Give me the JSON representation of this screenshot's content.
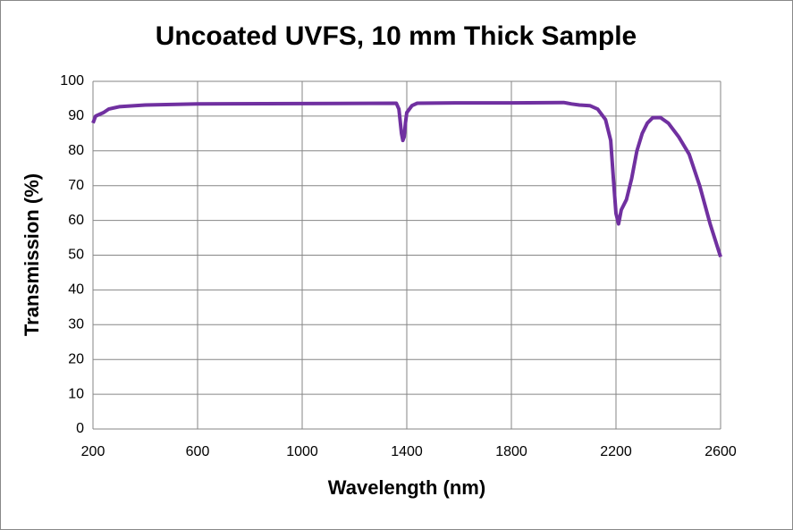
{
  "chart_data": {
    "type": "line",
    "title": "Uncoated UVFS, 10 mm Thick Sample",
    "x_label": "Wavelength (nm)",
    "y_label": "Transmission (%)",
    "x": [
      200,
      210,
      240,
      260,
      300,
      400,
      600,
      1000,
      1360,
      1370,
      1380,
      1385,
      1390,
      1395,
      1400,
      1420,
      1440,
      1600,
      1800,
      2000,
      2030,
      2060,
      2100,
      2130,
      2160,
      2180,
      2190,
      2200,
      2210,
      2220,
      2240,
      2260,
      2280,
      2300,
      2320,
      2340,
      2370,
      2400,
      2440,
      2480,
      2520,
      2560,
      2600
    ],
    "series": [
      {
        "name": "Transmission",
        "color": "#7030a0",
        "values": [
          88,
          90,
          91,
          92,
          92.7,
          93.2,
          93.5,
          93.6,
          93.7,
          92,
          85,
          83,
          84,
          88,
          91,
          93,
          93.7,
          93.8,
          93.8,
          93.9,
          93.5,
          93.2,
          93,
          92,
          89,
          83,
          72,
          62,
          59,
          63,
          66,
          72,
          80,
          85,
          88,
          89.5,
          89.6,
          88,
          84,
          79,
          70,
          59,
          49.5
        ]
      }
    ],
    "xlim": [
      200,
      2600
    ],
    "xticks": [
      200,
      600,
      1000,
      1400,
      1800,
      2200,
      2600
    ],
    "ylim": [
      0,
      100
    ],
    "yticks": [
      0,
      10,
      20,
      30,
      40,
      50,
      60,
      70,
      80,
      90,
      100
    ],
    "grid": true
  }
}
